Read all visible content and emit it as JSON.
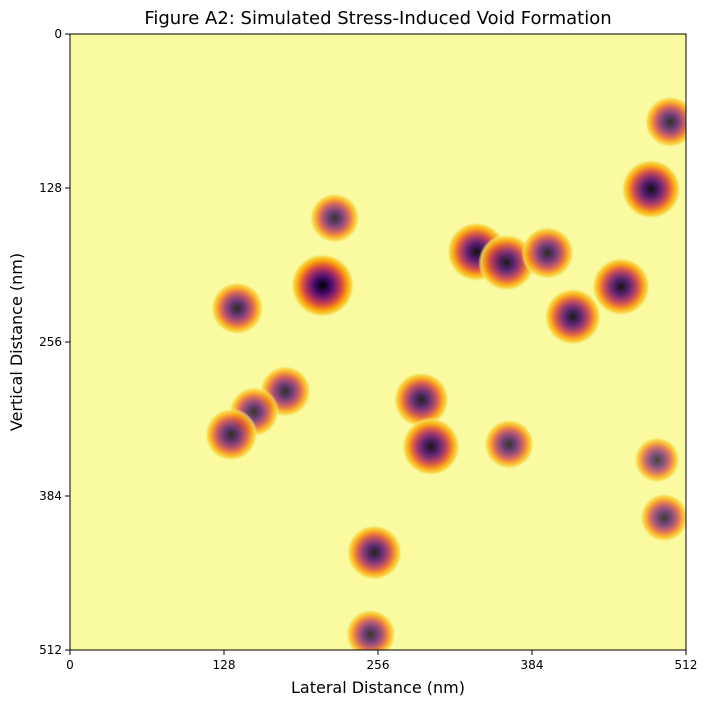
{
  "chart_data": {
    "type": "heatmap",
    "title": "Figure A2: Simulated Stress-Induced Void Formation",
    "xlabel": "Lateral Distance (nm)",
    "ylabel": "Vertical Distance (nm)",
    "xlim": [
      0,
      512
    ],
    "ylim": [
      512,
      0
    ],
    "y_axis_inverted": true,
    "xticks": [
      0,
      128,
      256,
      384,
      512
    ],
    "yticks": [
      0,
      128,
      256,
      384,
      512
    ],
    "colormap": "inferno",
    "background_color": "#fafaa0",
    "grid": false,
    "voids": [
      {
        "x": 499,
        "y": 73,
        "intensity": 0.55
      },
      {
        "x": 483,
        "y": 129,
        "intensity": 0.85
      },
      {
        "x": 220,
        "y": 153,
        "intensity": 0.5
      },
      {
        "x": 338,
        "y": 181,
        "intensity": 0.85
      },
      {
        "x": 363,
        "y": 190,
        "intensity": 0.75
      },
      {
        "x": 397,
        "y": 182,
        "intensity": 0.6
      },
      {
        "x": 210,
        "y": 209,
        "intensity": 1.0
      },
      {
        "x": 458,
        "y": 210,
        "intensity": 0.8
      },
      {
        "x": 139,
        "y": 228,
        "intensity": 0.6
      },
      {
        "x": 418,
        "y": 235,
        "intensity": 0.75
      },
      {
        "x": 179,
        "y": 297,
        "intensity": 0.55
      },
      {
        "x": 292,
        "y": 304,
        "intensity": 0.7
      },
      {
        "x": 153,
        "y": 314,
        "intensity": 0.5
      },
      {
        "x": 134,
        "y": 333,
        "intensity": 0.6
      },
      {
        "x": 300,
        "y": 343,
        "intensity": 0.8
      },
      {
        "x": 365,
        "y": 341,
        "intensity": 0.5
      },
      {
        "x": 488,
        "y": 354,
        "intensity": 0.35
      },
      {
        "x": 494,
        "y": 402,
        "intensity": 0.45
      },
      {
        "x": 253,
        "y": 431,
        "intensity": 0.7
      },
      {
        "x": 250,
        "y": 499,
        "intensity": 0.5
      }
    ]
  }
}
